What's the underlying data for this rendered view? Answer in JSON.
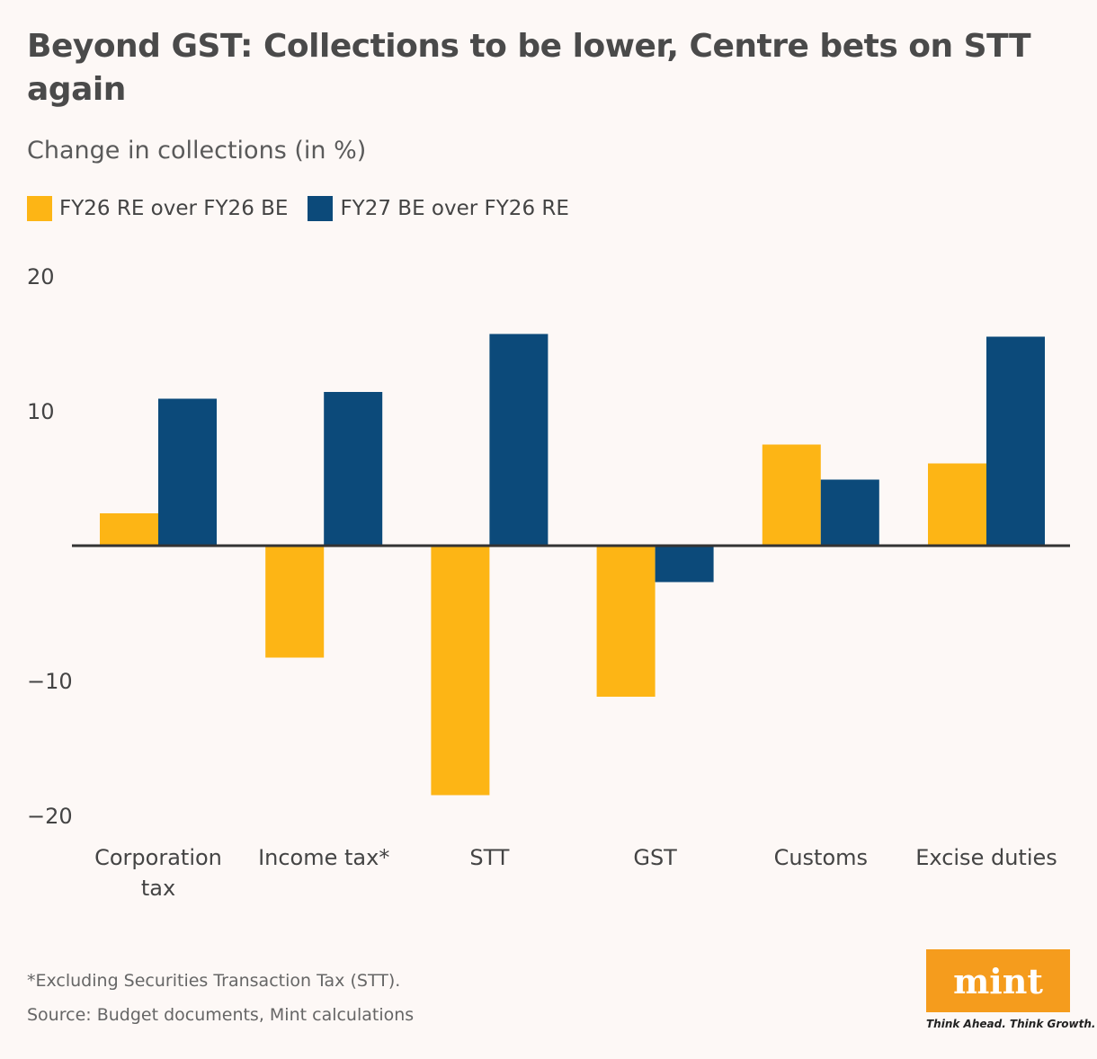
{
  "title": "Beyond GST: Collections to be lower, Centre bets on STT again",
  "subtitle": "Change in collections (in %)",
  "footnote": "*Excluding Securities Transaction Tax (STT).",
  "source": "Source: Budget documents, Mint calculations",
  "logo": {
    "text": "mint",
    "tagline": "Think Ahead. Think Growth."
  },
  "colors": {
    "series1": "#fdb515",
    "series2": "#0c4a7a"
  },
  "chart_data": {
    "type": "bar",
    "title": "Beyond GST: Collections to be lower, Centre bets on STT again",
    "ylabel": "Change in collections (in %)",
    "categories": [
      "Corporation tax",
      "Income tax*",
      "STT",
      "GST",
      "Customs",
      "Excise duties"
    ],
    "series": [
      {
        "name": "FY26 RE over FY26 BE",
        "values": [
          2.4,
          -8.3,
          -18.5,
          -11.2,
          7.5,
          6.1
        ]
      },
      {
        "name": "FY27 BE over FY26 RE",
        "values": [
          10.9,
          11.4,
          15.7,
          -2.7,
          4.9,
          15.5
        ]
      }
    ],
    "yticks": [
      "20",
      "10",
      "",
      "−10",
      "−20"
    ],
    "ytick_values": [
      20,
      10,
      0,
      -10,
      -20
    ],
    "ylim": [
      -20,
      20
    ],
    "grid": false,
    "legend": "top-left"
  }
}
